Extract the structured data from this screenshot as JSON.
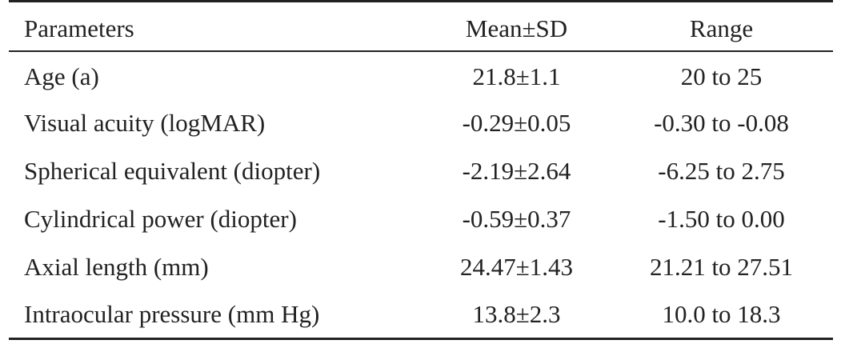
{
  "table": {
    "headers": [
      "Parameters",
      "Mean±SD",
      "Range"
    ],
    "rows": [
      [
        "Age (a)",
        "21.8±1.1",
        "20 to 25"
      ],
      [
        "Visual acuity (logMAR)",
        "-0.29±0.05",
        "-0.30 to -0.08"
      ],
      [
        "Spherical equivalent (diopter)",
        "-2.19±2.64",
        "-6.25 to 2.75"
      ],
      [
        "Cylindrical power (diopter)",
        "-0.59±0.37",
        "-1.50 to 0.00"
      ],
      [
        "Axial length (mm)",
        "24.47±1.43",
        "21.21 to 27.51"
      ],
      [
        "Intraocular pressure (mm Hg)",
        "13.8±2.3",
        "10.0 to 18.3"
      ]
    ]
  }
}
